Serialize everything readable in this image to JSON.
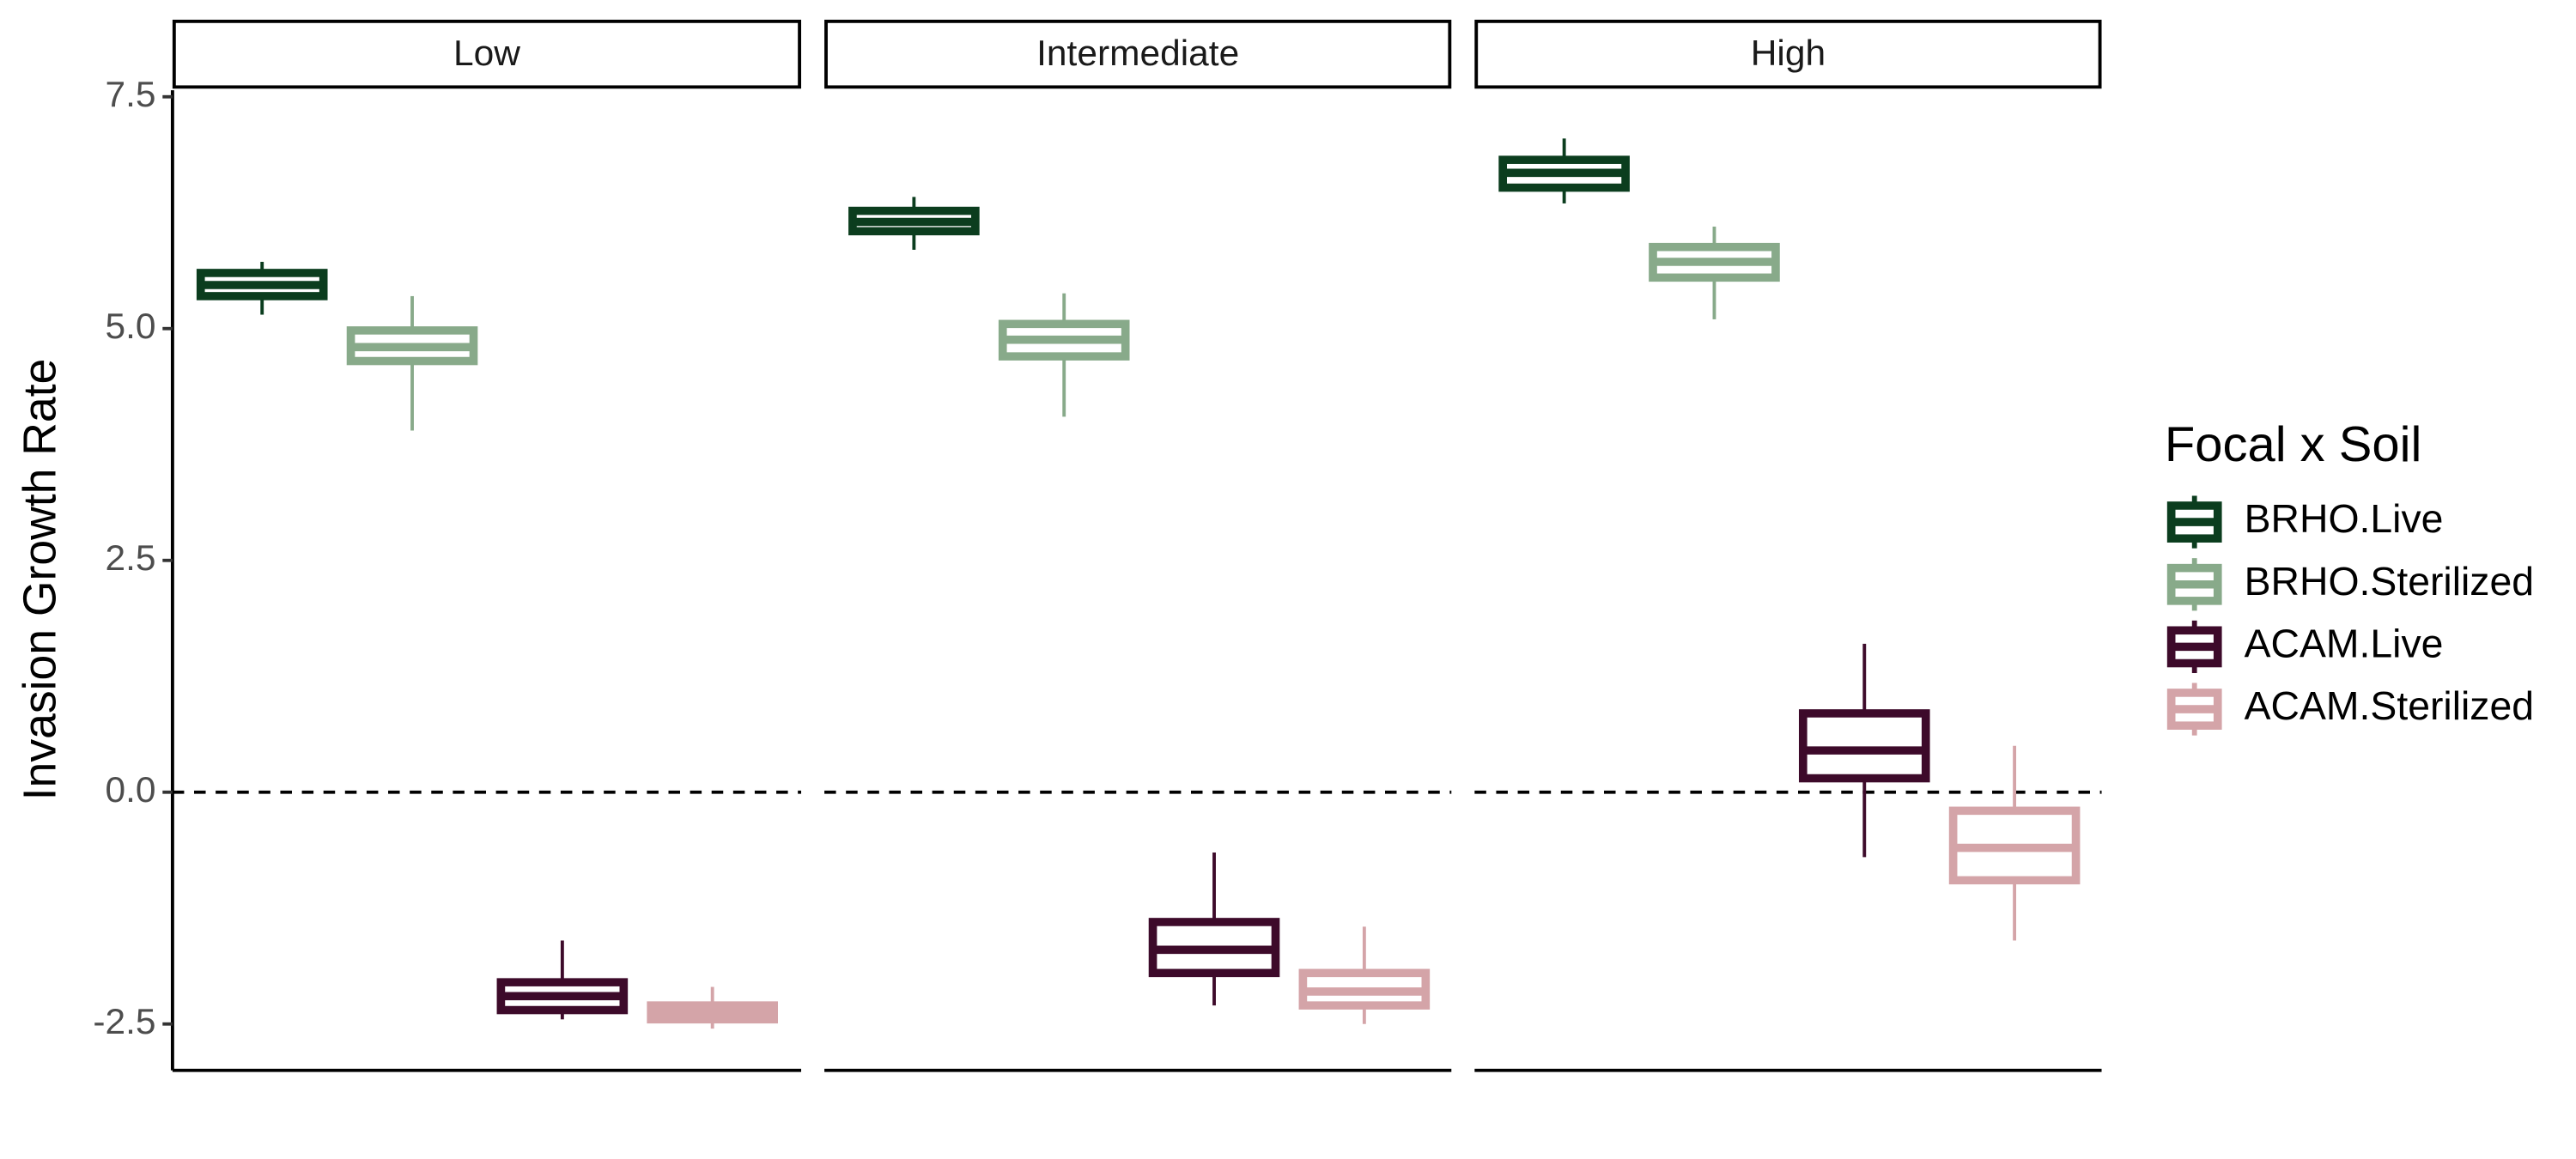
{
  "chart_data": {
    "type": "box",
    "y_label": "Invasion Growth Rate",
    "facets": [
      "Low",
      "Intermediate",
      "High"
    ],
    "legend_title": "Focal x Soil",
    "ylim": [
      -3.0,
      7.57
    ],
    "yticks": [
      7.5,
      {
        "value": 5,
        "label": "5.0"
      },
      2.5,
      {
        "value": 0,
        "label": "0.0"
      },
      -2.5
    ],
    "hline": 0,
    "series": [
      {
        "name": "BRHO.Live",
        "color": "#0b3d1e",
        "values": [
          {
            "min": 5.15,
            "q1": 5.35,
            "median": 5.47,
            "q3": 5.6,
            "max": 5.72
          },
          {
            "min": 5.85,
            "q1": 6.05,
            "median": 6.15,
            "q3": 6.27,
            "max": 6.42
          },
          {
            "min": 6.35,
            "q1": 6.52,
            "median": 6.68,
            "q3": 6.82,
            "max": 7.05
          }
        ]
      },
      {
        "name": "BRHO.Sterilized",
        "color": "#88aa8a",
        "values": [
          {
            "min": 3.9,
            "q1": 4.65,
            "median": 4.8,
            "q3": 4.98,
            "max": 5.35
          },
          {
            "min": 4.05,
            "q1": 4.7,
            "median": 4.88,
            "q3": 5.05,
            "max": 5.38
          },
          {
            "min": 5.1,
            "q1": 5.55,
            "median": 5.72,
            "q3": 5.88,
            "max": 6.1
          }
        ]
      },
      {
        "name": "ACAM.Live",
        "color": "#3d0a2a",
        "values": [
          {
            "min": -2.45,
            "q1": -2.35,
            "median": -2.2,
            "q3": -2.05,
            "max": -1.6
          },
          {
            "min": -2.3,
            "q1": -1.95,
            "median": -1.7,
            "q3": -1.4,
            "max": -0.65
          },
          {
            "min": -0.7,
            "q1": 0.15,
            "median": 0.45,
            "q3": 0.85,
            "max": 1.6
          }
        ]
      },
      {
        "name": "ACAM.Sterilized",
        "color": "#d4a4a8",
        "values": [
          {
            "min": -2.55,
            "q1": -2.45,
            "median": -2.38,
            "q3": -2.3,
            "max": -2.1
          },
          {
            "min": -2.5,
            "q1": -2.3,
            "median": -2.15,
            "q3": -1.95,
            "max": -1.45
          },
          {
            "min": -1.6,
            "q1": -0.95,
            "median": -0.6,
            "q3": -0.2,
            "max": 0.5
          }
        ]
      }
    ]
  }
}
